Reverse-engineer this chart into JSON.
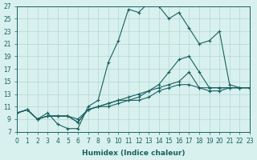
{
  "xlabel": "Humidex (Indice chaleur)",
  "ylabel": "",
  "xlim": [
    0,
    23
  ],
  "ylim": [
    7,
    27
  ],
  "xticks": [
    0,
    1,
    2,
    3,
    4,
    5,
    6,
    7,
    8,
    9,
    10,
    11,
    12,
    13,
    14,
    15,
    16,
    17,
    18,
    19,
    20,
    21,
    22,
    23
  ],
  "yticks": [
    7,
    9,
    11,
    13,
    15,
    17,
    19,
    21,
    23,
    25,
    27
  ],
  "bg_color": "#d8f0ee",
  "grid_color": "#b0d8d4",
  "line_color": "#1a6060",
  "series": [
    [
      10.0,
      10.5,
      9.0,
      10.0,
      8.2,
      7.5,
      7.5,
      11.0,
      12.0,
      18.0,
      21.5,
      26.5,
      26.0,
      27.5,
      27.0,
      25.0,
      26.0,
      23.5,
      21.0,
      21.5,
      23.0,
      14.5,
      14.0,
      14.0
    ],
    [
      10.0,
      10.5,
      9.0,
      9.5,
      9.5,
      9.5,
      8.5,
      10.5,
      11.0,
      11.5,
      12.0,
      12.0,
      12.5,
      13.5,
      14.5,
      16.5,
      18.5,
      19.0,
      16.5,
      14.0,
      14.0,
      14.0,
      14.0,
      14.0
    ],
    [
      10.0,
      10.5,
      9.0,
      9.5,
      9.5,
      9.5,
      8.5,
      10.5,
      11.0,
      11.0,
      11.5,
      12.0,
      12.0,
      12.5,
      13.5,
      14.0,
      14.5,
      14.5,
      14.0,
      13.5,
      13.5,
      14.0,
      14.0,
      14.0
    ],
    [
      10.0,
      10.5,
      9.0,
      9.5,
      9.5,
      9.5,
      9.0,
      10.5,
      11.0,
      11.5,
      12.0,
      12.5,
      13.0,
      13.5,
      14.0,
      14.5,
      15.0,
      16.5,
      14.0,
      14.0,
      14.0,
      14.0,
      14.0,
      14.0
    ]
  ],
  "marker": "+"
}
